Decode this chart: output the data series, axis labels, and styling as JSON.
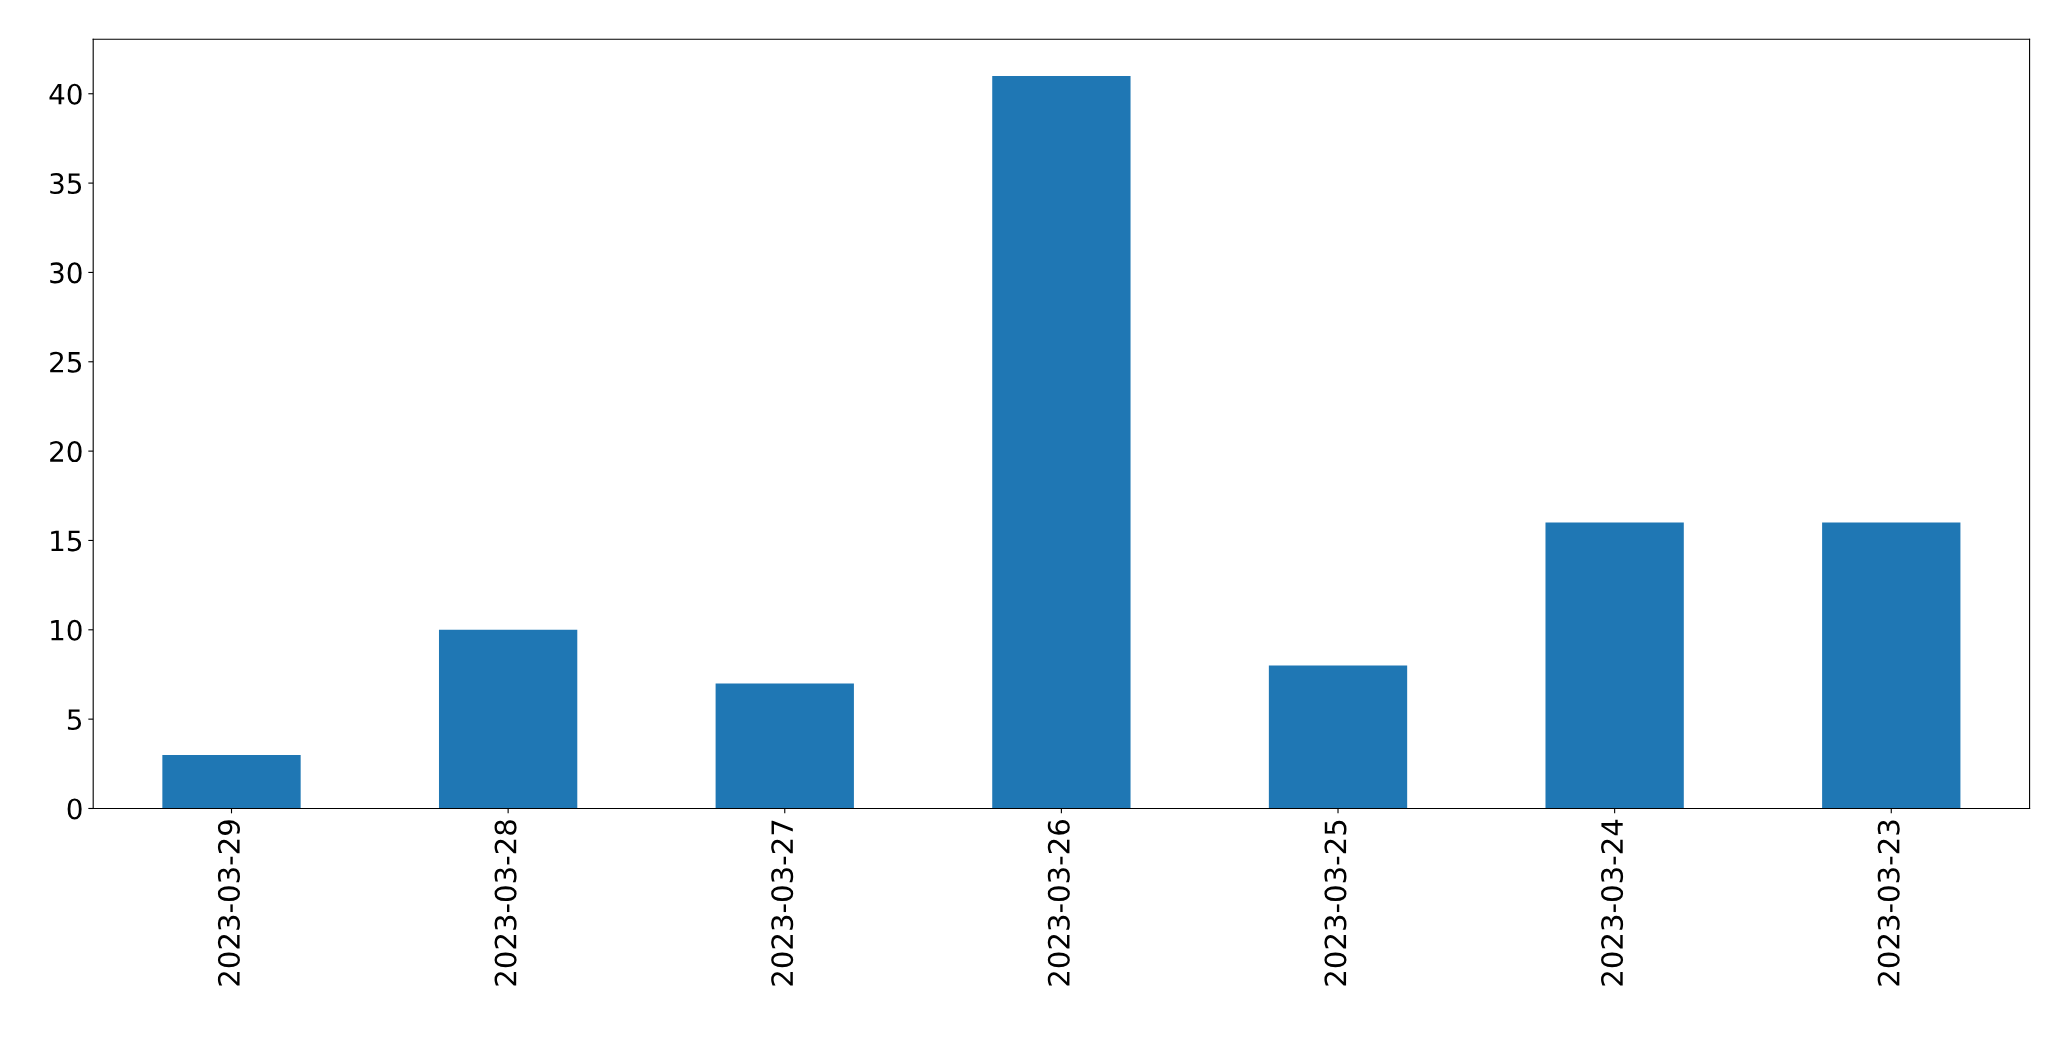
{
  "chart_data": {
    "type": "bar",
    "categories": [
      "2023-03-29",
      "2023-03-28",
      "2023-03-27",
      "2023-03-26",
      "2023-03-25",
      "2023-03-24",
      "2023-03-23"
    ],
    "values": [
      3,
      10,
      7,
      41,
      8,
      16,
      16
    ],
    "color": "#1f77b4",
    "ylim": [
      0,
      43.05
    ],
    "yticks": [
      0,
      5,
      10,
      15,
      20,
      25,
      30,
      35,
      40
    ],
    "grid": false
  }
}
